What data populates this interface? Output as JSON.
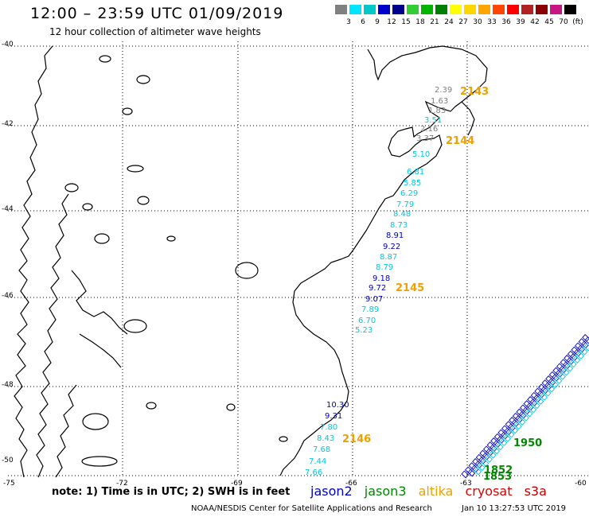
{
  "header": {
    "title": "12:00 – 23:59 UTC 01/09/2019",
    "subtitle": "12 hour collection of altimeter wave heights"
  },
  "colorbar": {
    "ticks": [
      "3",
      "6",
      "9",
      "12",
      "15",
      "18",
      "21",
      "24",
      "27",
      "30",
      "33",
      "36",
      "39",
      "42",
      "45",
      "70",
      "(ft)"
    ],
    "colors": [
      "#808080",
      "#00e5ff",
      "#00c8c8",
      "#0000cd",
      "#00008b",
      "#32cd32",
      "#00b400",
      "#008000",
      "#ffff00",
      "#ffd700",
      "#ffa500",
      "#ff4500",
      "#ff0000",
      "#b22222",
      "#8b0000",
      "#c71585",
      "#000000"
    ]
  },
  "axes": {
    "lat_labels": [
      "-40",
      "-42",
      "-44",
      "-46",
      "-48",
      "-50"
    ],
    "lon_labels": [
      "-75",
      "-72",
      "-69",
      "-66",
      "-63",
      "-60"
    ]
  },
  "tracks": {
    "orbits": [
      {
        "label": "2143",
        "color": "#f0a000"
      },
      {
        "label": "2144",
        "color": "#f0a000"
      },
      {
        "label": "2145",
        "color": "#f0a000"
      },
      {
        "label": "2146",
        "color": "#f0a000"
      },
      {
        "label": "1950",
        "color": "#008800"
      },
      {
        "label": "1852",
        "color": "#008800"
      },
      {
        "label": "1853",
        "color": "#008800"
      }
    ],
    "values": [
      {
        "v": "2.39",
        "color": "#808080"
      },
      {
        "v": "1.63",
        "color": "#808080"
      },
      {
        "v": "1.83",
        "color": "#808080"
      },
      {
        "v": "3.51",
        "color": "#00c8e0"
      },
      {
        "v": "2.16",
        "color": "#808080"
      },
      {
        "v": "3.37",
        "color": "#808080"
      },
      {
        "v": "5.10",
        "color": "#00c8e0"
      },
      {
        "v": "6.81",
        "color": "#00c8e0"
      },
      {
        "v": "5.85",
        "color": "#00c8e0"
      },
      {
        "v": "6.29",
        "color": "#00c8e0"
      },
      {
        "v": "7.79",
        "color": "#00c8e0"
      },
      {
        "v": "8.48",
        "color": "#00c8e0"
      },
      {
        "v": "8.73",
        "color": "#00c8e0"
      },
      {
        "v": "8.91",
        "color": "#0000cd"
      },
      {
        "v": "9.22",
        "color": "#0000cd"
      },
      {
        "v": "8.87",
        "color": "#00c8e0"
      },
      {
        "v": "8.79",
        "color": "#00c8e0"
      },
      {
        "v": "9.18",
        "color": "#0000cd"
      },
      {
        "v": "9.72",
        "color": "#0000cd"
      },
      {
        "v": "9.07",
        "color": "#0000cd"
      },
      {
        "v": "7.89",
        "color": "#00c8e0"
      },
      {
        "v": "6.70",
        "color": "#00c8e0"
      },
      {
        "v": "5.23",
        "color": "#00c8e0"
      },
      {
        "v": "10.30",
        "color": "#0000cd"
      },
      {
        "v": "9.31",
        "color": "#0000cd"
      },
      {
        "v": "7.80",
        "color": "#00c8e0"
      },
      {
        "v": "8.43",
        "color": "#00c8e0"
      },
      {
        "v": "7.68",
        "color": "#00c8e0"
      },
      {
        "v": "7.44",
        "color": "#00c8e0"
      },
      {
        "v": "7.66",
        "color": "#00c8e0"
      }
    ]
  },
  "bottom": {
    "note": "note:  1) Time is in UTC;  2) SWH is in feet",
    "legend": [
      {
        "name": "jason2",
        "color": "#0000cd"
      },
      {
        "name": "jason3",
        "color": "#008800"
      },
      {
        "name": "altika",
        "color": "#f0a000"
      },
      {
        "name": "cryosat",
        "color": "#e00000"
      },
      {
        "name": "s3a",
        "color": "#c00000"
      }
    ],
    "credit": "NOAA/NESDIS Center for Satellite Applications and Research",
    "timestamp": "Jan 10 13:27:53 UTC 2019"
  }
}
